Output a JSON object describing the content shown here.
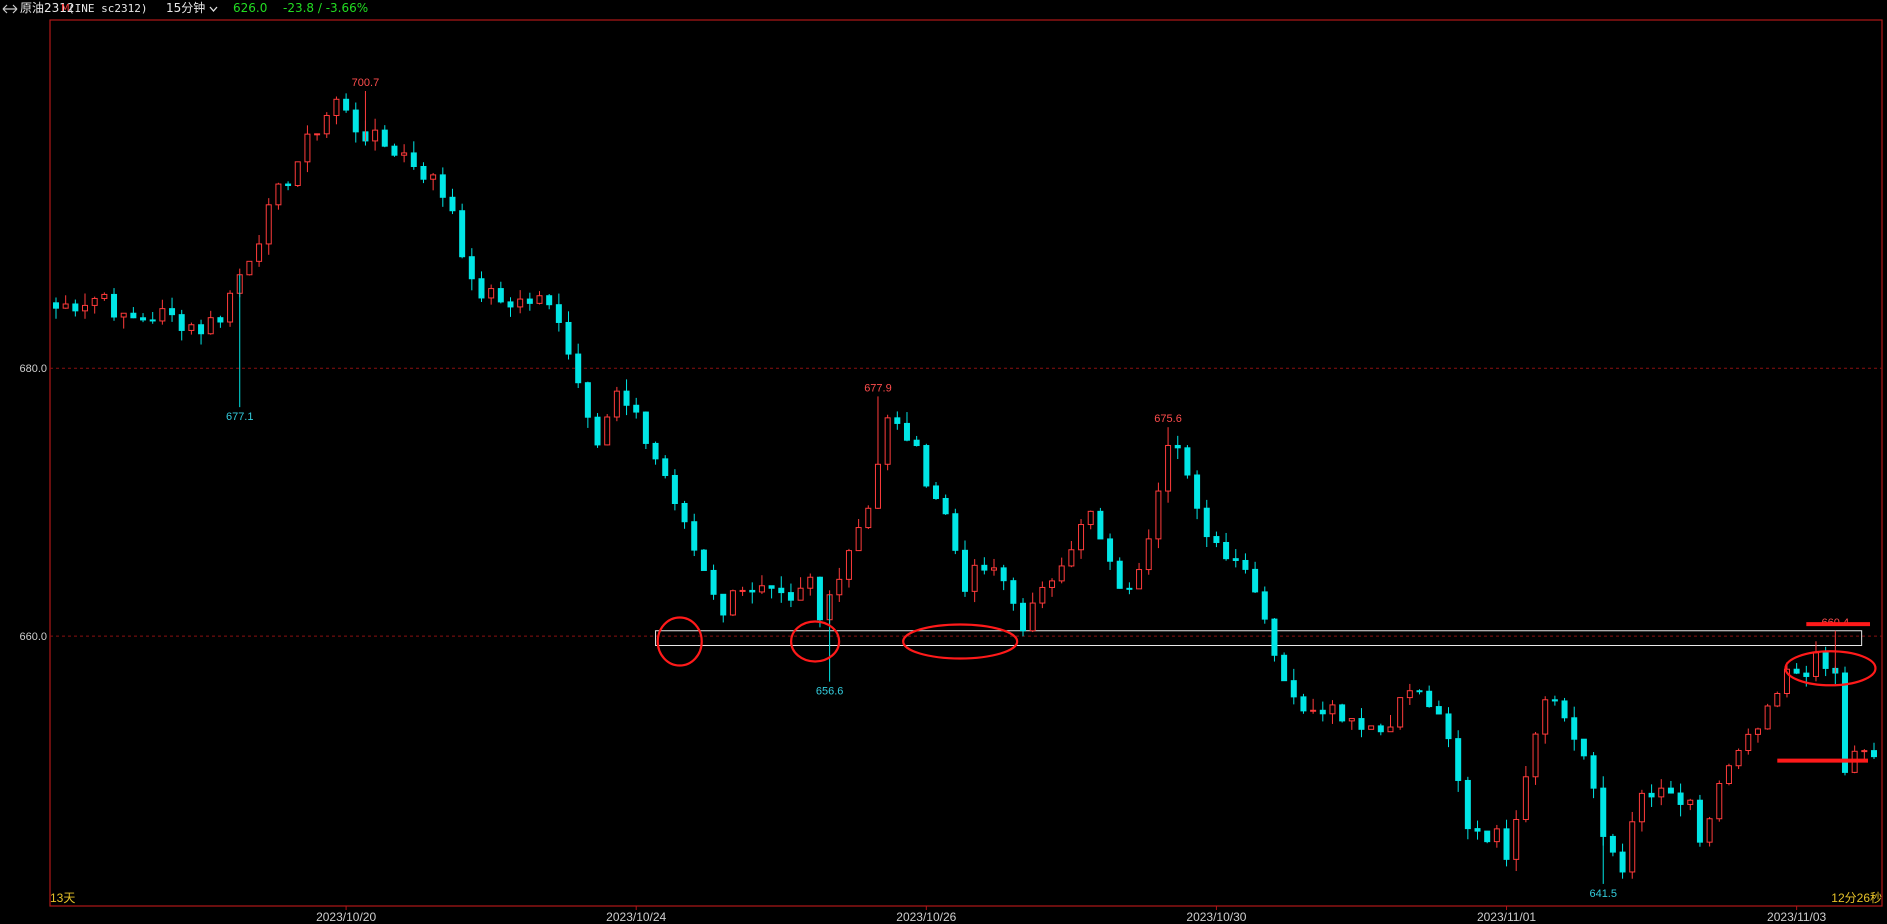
{
  "header": {
    "nav_icon": "arrow-left-right-icon",
    "symbol": "原油2312",
    "marker": "M",
    "code": "(INE sc2312)",
    "period": "15分钟",
    "dropdown_icon": "chevron-down-icon",
    "price": "626.0",
    "change": "-23.8 / -3.66%"
  },
  "colors": {
    "up": "#ff3b3b",
    "down": "#00e5e5",
    "grid": "#8a1010",
    "axis": "#b01818",
    "annotation": "#ff1a1a",
    "price_label_up": "#ff4d4d",
    "price_label_down": "#33ccdd",
    "change_green": "#22dd22",
    "corner_yellow": "#e6c229"
  },
  "corner": {
    "left": "13天",
    "right": "12分26秒"
  },
  "chart_data": {
    "type": "candlestick",
    "ylim": [
      640,
      706
    ],
    "ytick_labels": [
      {
        "value": 680,
        "label": "680.0"
      },
      {
        "value": 660,
        "label": "660.0"
      }
    ],
    "x_labels": [
      {
        "index": 30,
        "label": "2023/10/20"
      },
      {
        "index": 60,
        "label": "2023/10/24"
      },
      {
        "index": 90,
        "label": "2023/10/26"
      },
      {
        "index": 120,
        "label": "2023/10/30"
      },
      {
        "index": 150,
        "label": "2023/11/01"
      },
      {
        "index": 180,
        "label": "2023/11/03"
      }
    ],
    "anchors": [
      [
        0,
        684.5
      ],
      [
        5,
        685.5
      ],
      [
        7,
        683.5
      ],
      [
        11,
        684
      ],
      [
        15,
        683
      ],
      [
        17,
        684
      ],
      [
        19,
        687
      ],
      [
        23,
        693
      ],
      [
        27,
        698
      ],
      [
        29,
        700
      ],
      [
        31,
        698
      ],
      [
        33,
        697
      ],
      [
        36,
        696
      ],
      [
        39,
        694
      ],
      [
        41,
        692
      ],
      [
        43,
        686
      ],
      [
        46,
        685
      ],
      [
        50,
        685
      ],
      [
        52,
        684
      ],
      [
        54,
        679
      ],
      [
        56,
        675
      ],
      [
        58,
        678
      ],
      [
        60,
        676
      ],
      [
        63,
        672
      ],
      [
        65,
        668
      ],
      [
        67,
        665
      ],
      [
        69,
        662
      ],
      [
        71,
        664
      ],
      [
        74,
        663
      ],
      [
        76,
        662
      ],
      [
        78,
        664
      ],
      [
        79,
        661
      ],
      [
        81,
        665
      ],
      [
        84,
        670
      ],
      [
        86,
        676
      ],
      [
        88,
        675
      ],
      [
        90,
        672
      ],
      [
        92,
        669
      ],
      [
        94,
        664
      ],
      [
        96,
        665
      ],
      [
        98,
        664
      ],
      [
        100,
        661
      ],
      [
        102,
        663
      ],
      [
        104,
        666
      ],
      [
        107,
        669
      ],
      [
        109,
        665
      ],
      [
        111,
        663
      ],
      [
        113,
        668
      ],
      [
        115,
        675
      ],
      [
        116,
        674
      ],
      [
        118,
        669
      ],
      [
        120,
        667
      ],
      [
        122,
        666
      ],
      [
        124,
        664
      ],
      [
        126,
        659
      ],
      [
        128,
        655
      ],
      [
        131,
        655
      ],
      [
        134,
        654
      ],
      [
        137,
        653
      ],
      [
        140,
        656
      ],
      [
        142,
        655
      ],
      [
        144,
        652
      ],
      [
        146,
        646
      ],
      [
        149,
        645
      ],
      [
        150,
        644
      ],
      [
        154,
        656
      ],
      [
        156,
        654
      ],
      [
        158,
        651
      ],
      [
        160,
        645
      ],
      [
        162,
        643
      ],
      [
        164,
        648
      ],
      [
        167,
        648
      ],
      [
        169,
        647
      ],
      [
        170,
        644
      ],
      [
        172,
        649
      ],
      [
        174,
        651
      ],
      [
        177,
        654
      ],
      [
        179,
        657
      ],
      [
        182,
        658
      ],
      [
        184,
        657
      ],
      [
        185,
        650
      ],
      [
        186,
        651
      ]
    ],
    "high_low_labels": [
      {
        "index": 32,
        "value": 700.7,
        "label": "700.7",
        "kind": "high"
      },
      {
        "index": 19,
        "value": 677.1,
        "label": "677.1",
        "kind": "low"
      },
      {
        "index": 85,
        "value": 677.9,
        "label": "677.9",
        "kind": "high"
      },
      {
        "index": 80,
        "value": 656.6,
        "label": "656.6",
        "kind": "low"
      },
      {
        "index": 115,
        "value": 675.6,
        "label": "675.6",
        "kind": "high"
      },
      {
        "index": 184,
        "value": 660.4,
        "label": "660.4",
        "kind": "high"
      },
      {
        "index": 160,
        "value": 641.5,
        "label": "641.5",
        "kind": "low"
      }
    ],
    "grid": true
  }
}
